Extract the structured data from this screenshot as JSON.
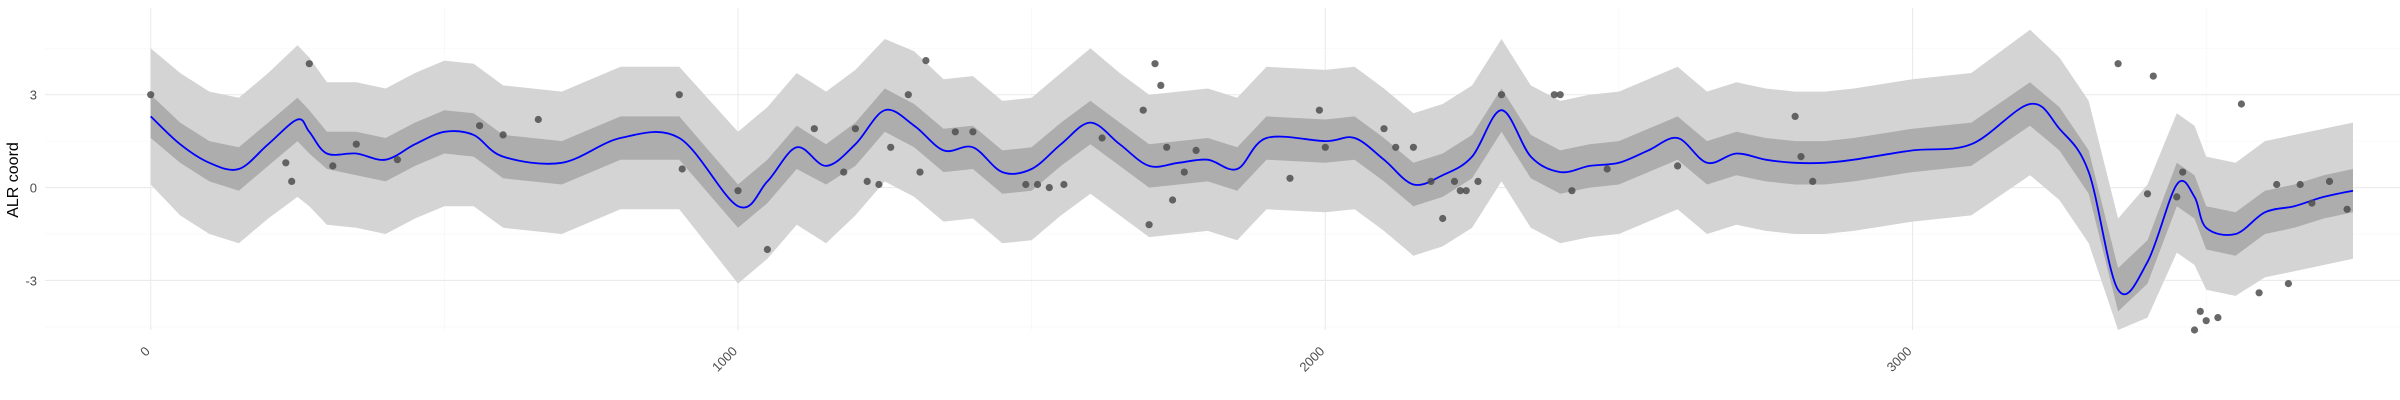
{
  "chart_data": {
    "type": "line",
    "title": "",
    "xlabel": "",
    "ylabel": "ALR coord",
    "xlim": [
      -180,
      3830
    ],
    "ylim": [
      -4.6,
      5.8
    ],
    "x_ticks": [
      0,
      1000,
      2000,
      3000
    ],
    "x_tick_labels": [
      "0",
      "1000",
      "2000",
      "3000"
    ],
    "y_ticks": [
      -3,
      0,
      3
    ],
    "y_tick_labels": [
      "-3",
      "0",
      "3"
    ],
    "x_minor_ticks": [
      -500,
      500,
      1500,
      2500,
      3500
    ],
    "y_minor_ticks": [
      -4.5,
      -1.5,
      1.5,
      4.5
    ],
    "grid": true,
    "x_tick_label_rotation_deg": -45,
    "colors": {
      "mean_line": "#0000ff",
      "inner_band": "#adadad",
      "outer_band": "#d4d4d4",
      "points": "#4d4d4d",
      "grid": "#ebebeb",
      "background": "#ffffff"
    },
    "series": [
      {
        "kind": "mean",
        "x": [
          0,
          50,
          100,
          150,
          200,
          250,
          270,
          300,
          350,
          400,
          450,
          500,
          550,
          600,
          700,
          800,
          900,
          1000,
          1050,
          1100,
          1150,
          1200,
          1250,
          1300,
          1350,
          1400,
          1450,
          1500,
          1550,
          1600,
          1650,
          1700,
          1750,
          1800,
          1850,
          1900,
          2000,
          2050,
          2100,
          2150,
          2200,
          2250,
          2300,
          2350,
          2400,
          2450,
          2500,
          2550,
          2600,
          2650,
          2700,
          2750,
          2800,
          2850,
          2900,
          3000,
          3100,
          3200,
          3250,
          3300,
          3350,
          3400,
          3450,
          3480,
          3500,
          3550,
          3600,
          3650,
          3700,
          3750
        ],
        "y": [
          2.3,
          1.4,
          0.8,
          0.6,
          1.4,
          2.2,
          1.8,
          1.1,
          1.1,
          0.9,
          1.4,
          1.8,
          1.7,
          1.0,
          0.8,
          1.6,
          1.6,
          -0.6,
          0.2,
          1.3,
          0.7,
          1.4,
          2.5,
          2.0,
          1.2,
          1.3,
          0.5,
          0.6,
          1.4,
          2.1,
          1.4,
          0.7,
          0.8,
          0.9,
          0.6,
          1.6,
          1.5,
          1.6,
          0.9,
          0.1,
          0.4,
          1.0,
          2.5,
          1.0,
          0.5,
          0.7,
          0.8,
          1.2,
          1.6,
          0.8,
          1.1,
          0.9,
          0.8,
          0.8,
          0.9,
          1.2,
          1.4,
          2.7,
          1.9,
          0.5,
          -3.3,
          -2.4,
          0.1,
          -0.3,
          -1.3,
          -1.5,
          -0.8,
          -0.6,
          -0.3,
          -0.1
        ]
      },
      {
        "kind": "inner_band",
        "x": [
          0,
          50,
          100,
          150,
          200,
          250,
          270,
          300,
          350,
          400,
          450,
          500,
          550,
          600,
          700,
          800,
          900,
          1000,
          1050,
          1100,
          1150,
          1200,
          1250,
          1300,
          1350,
          1400,
          1450,
          1500,
          1550,
          1600,
          1650,
          1700,
          1750,
          1800,
          1850,
          1900,
          2000,
          2050,
          2100,
          2150,
          2200,
          2250,
          2300,
          2350,
          2400,
          2450,
          2500,
          2550,
          2600,
          2650,
          2700,
          2750,
          2800,
          2850,
          2900,
          3000,
          3100,
          3200,
          3250,
          3300,
          3350,
          3400,
          3450,
          3480,
          3500,
          3550,
          3600,
          3650,
          3700,
          3750
        ],
        "lower": [
          1.6,
          0.8,
          0.2,
          -0.1,
          0.7,
          1.5,
          1.1,
          0.6,
          0.4,
          0.2,
          0.7,
          1.1,
          1.0,
          0.3,
          0.1,
          0.9,
          0.9,
          -1.3,
          -0.5,
          0.6,
          0.1,
          0.7,
          1.8,
          1.3,
          0.5,
          0.6,
          -0.2,
          -0.1,
          0.7,
          1.4,
          0.7,
          0.0,
          0.1,
          0.2,
          -0.1,
          0.9,
          0.8,
          0.9,
          0.2,
          -0.6,
          -0.3,
          0.3,
          1.8,
          0.3,
          -0.2,
          0.0,
          0.1,
          0.5,
          0.9,
          0.1,
          0.4,
          0.2,
          0.1,
          0.1,
          0.2,
          0.5,
          0.7,
          2.0,
          1.2,
          -0.2,
          -4.0,
          -3.1,
          -0.6,
          -1.0,
          -2.0,
          -2.2,
          -1.5,
          -1.3,
          -1.0,
          -0.8
        ],
        "upper": [
          3.0,
          2.1,
          1.5,
          1.3,
          2.1,
          2.9,
          2.5,
          1.8,
          1.8,
          1.6,
          2.1,
          2.5,
          2.4,
          1.7,
          1.5,
          2.3,
          2.3,
          0.1,
          0.9,
          2.0,
          1.4,
          2.1,
          3.2,
          2.7,
          1.9,
          2.0,
          1.2,
          1.3,
          2.1,
          2.8,
          2.1,
          1.4,
          1.5,
          1.6,
          1.3,
          2.3,
          2.2,
          2.3,
          1.6,
          0.8,
          1.1,
          1.7,
          3.2,
          1.7,
          1.2,
          1.4,
          1.5,
          1.9,
          2.3,
          1.5,
          1.8,
          1.6,
          1.5,
          1.5,
          1.6,
          1.9,
          2.1,
          3.4,
          2.6,
          1.2,
          -2.6,
          -1.7,
          0.8,
          0.4,
          -0.6,
          -0.8,
          -0.1,
          0.1,
          0.4,
          0.6
        ]
      },
      {
        "kind": "outer_band",
        "x": [
          0,
          50,
          100,
          150,
          200,
          250,
          270,
          300,
          350,
          400,
          450,
          500,
          550,
          600,
          700,
          800,
          900,
          1000,
          1050,
          1100,
          1150,
          1200,
          1250,
          1300,
          1350,
          1400,
          1450,
          1500,
          1550,
          1600,
          1650,
          1700,
          1750,
          1800,
          1850,
          1900,
          2000,
          2050,
          2100,
          2150,
          2200,
          2250,
          2300,
          2350,
          2400,
          2450,
          2500,
          2550,
          2600,
          2650,
          2700,
          2750,
          2800,
          2850,
          2900,
          3000,
          3100,
          3200,
          3250,
          3300,
          3350,
          3400,
          3450,
          3480,
          3500,
          3550,
          3600,
          3650,
          3700,
          3750
        ],
        "lower": [
          0.1,
          -0.9,
          -1.5,
          -1.8,
          -1.0,
          -0.3,
          -0.6,
          -1.2,
          -1.3,
          -1.5,
          -1.0,
          -0.6,
          -0.6,
          -1.3,
          -1.5,
          -0.7,
          -0.7,
          -3.1,
          -2.3,
          -1.2,
          -1.8,
          -0.9,
          0.2,
          -0.3,
          -1.1,
          -1.0,
          -1.8,
          -1.7,
          -0.9,
          -0.2,
          -0.9,
          -1.6,
          -1.5,
          -1.4,
          -1.7,
          -0.7,
          -0.8,
          -0.7,
          -1.4,
          -2.2,
          -1.9,
          -1.3,
          0.2,
          -1.3,
          -1.8,
          -1.6,
          -1.5,
          -1.1,
          -0.7,
          -1.5,
          -1.2,
          -1.4,
          -1.5,
          -1.5,
          -1.4,
          -1.1,
          -0.9,
          0.4,
          -0.4,
          -1.8,
          -4.6,
          -4.2,
          -2.1,
          -2.5,
          -3.3,
          -3.5,
          -2.9,
          -2.7,
          -2.5,
          -2.3
        ],
        "upper": [
          4.5,
          3.7,
          3.1,
          2.9,
          3.7,
          4.6,
          4.2,
          3.4,
          3.4,
          3.2,
          3.7,
          4.1,
          4.0,
          3.3,
          3.1,
          3.9,
          3.9,
          1.8,
          2.6,
          3.7,
          3.1,
          3.8,
          4.8,
          4.4,
          3.5,
          3.6,
          2.8,
          2.9,
          3.7,
          4.5,
          3.7,
          3.0,
          3.1,
          3.2,
          2.9,
          3.9,
          3.8,
          3.9,
          3.2,
          2.4,
          2.7,
          3.3,
          4.8,
          3.3,
          2.8,
          3.0,
          3.1,
          3.5,
          3.9,
          3.1,
          3.4,
          3.2,
          3.1,
          3.1,
          3.2,
          3.5,
          3.7,
          5.1,
          4.2,
          2.8,
          -1.0,
          0.1,
          2.4,
          2.0,
          1.0,
          0.8,
          1.5,
          1.7,
          1.9,
          2.1
        ]
      },
      {
        "kind": "points",
        "x": [
          0,
          230,
          240,
          270,
          310,
          350,
          420,
          560,
          600,
          660,
          900,
          905,
          1000,
          1050,
          1130,
          1180,
          1200,
          1220,
          1240,
          1260,
          1290,
          1310,
          1320,
          1370,
          1400,
          1490,
          1510,
          1530,
          1555,
          1620,
          1690,
          1700,
          1710,
          1720,
          1730,
          1740,
          1760,
          1780,
          1940,
          1990,
          2000,
          2100,
          2120,
          2150,
          2180,
          2200,
          2220,
          2230,
          2240,
          2260,
          2300,
          2390,
          2400,
          2420,
          2480,
          2600,
          2800,
          2810,
          2830,
          3350,
          3400,
          3410,
          3450,
          3460,
          3480,
          3490,
          3500,
          3520,
          3560,
          3590,
          3620,
          3640,
          3660,
          3680,
          3710,
          3740
        ],
        "y": [
          3.0,
          0.8,
          0.2,
          4.0,
          0.7,
          1.4,
          0.9,
          2.0,
          1.7,
          2.2,
          3.0,
          0.6,
          -0.1,
          -2.0,
          1.9,
          0.5,
          1.9,
          0.2,
          0.1,
          1.3,
          3.0,
          0.5,
          4.1,
          1.8,
          1.8,
          0.1,
          0.1,
          0.0,
          0.1,
          1.6,
          2.5,
          -1.2,
          4.0,
          3.3,
          1.3,
          -0.4,
          0.5,
          1.2,
          0.3,
          2.5,
          1.3,
          1.9,
          1.3,
          1.3,
          0.2,
          -1.0,
          0.2,
          -0.1,
          -0.1,
          0.2,
          3.0,
          3.0,
          3.0,
          -0.1,
          0.6,
          0.7,
          2.3,
          1.0,
          0.2,
          4.0,
          -0.2,
          3.6,
          -0.3,
          0.5,
          -4.6,
          -4.0,
          -4.3,
          -4.2,
          2.7,
          -3.4,
          0.1,
          -3.1,
          0.1,
          -0.5,
          0.2,
          -0.7
        ]
      }
    ]
  }
}
